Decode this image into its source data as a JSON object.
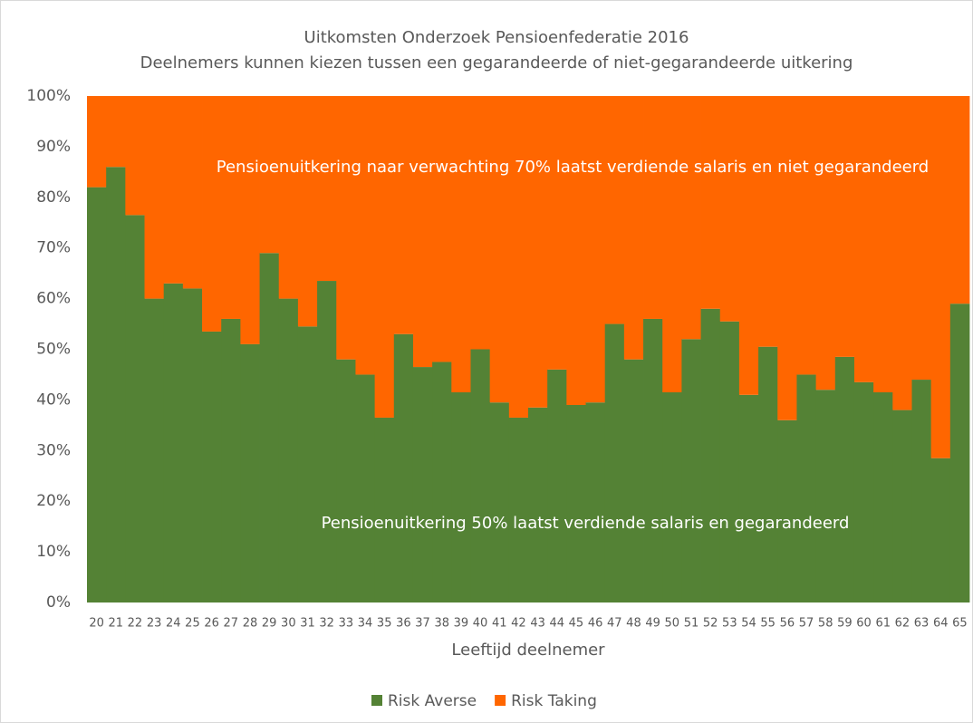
{
  "chart_data": {
    "type": "stacked_bar",
    "title": "Uitkomsten Onderzoek Pensioenfederatie 2016",
    "subtitle": "Deelnemers kunnen kiezen tussen een gegarandeerde of niet-gegarandeerde uitkering",
    "x_label": "Leeftijd deelnemer",
    "categories": [
      "20",
      "21",
      "22",
      "23",
      "24",
      "25",
      "26",
      "27",
      "28",
      "29",
      "30",
      "31",
      "32",
      "33",
      "34",
      "35",
      "36",
      "37",
      "38",
      "39",
      "40",
      "41",
      "42",
      "43",
      "44",
      "45",
      "46",
      "47",
      "48",
      "49",
      "50",
      "51",
      "52",
      "53",
      "54",
      "55",
      "56",
      "57",
      "58",
      "59",
      "60",
      "61",
      "62",
      "63",
      "64",
      "65"
    ],
    "series": [
      {
        "name": "Risk Averse",
        "color": "#548235",
        "values": [
          82,
          86,
          76.5,
          60,
          63,
          62,
          53.5,
          56,
          51,
          69,
          60,
          54.5,
          63.5,
          48,
          45,
          36.5,
          53,
          46.5,
          47.5,
          41.5,
          50,
          39.5,
          36.5,
          38.5,
          46,
          39,
          39.5,
          55,
          48,
          56,
          41.5,
          52,
          58,
          55.5,
          41,
          50.5,
          36,
          45,
          42,
          48.5,
          43.5,
          41.5,
          38,
          44,
          28.5,
          59
        ]
      },
      {
        "name": "Risk Taking",
        "color": "#ff6600",
        "values": [
          18,
          14,
          23.5,
          40,
          37,
          38,
          46.5,
          44,
          49,
          31,
          40,
          45.5,
          36.5,
          52,
          55,
          63.5,
          47,
          53.5,
          52.5,
          58.5,
          50,
          60.5,
          63.5,
          61.5,
          54,
          61,
          60.5,
          45,
          52,
          44,
          58.5,
          48,
          42,
          44.5,
          59,
          49.5,
          64,
          55,
          58,
          51.5,
          56.5,
          58.5,
          62,
          56,
          71.5,
          41
        ]
      }
    ],
    "annotations": [
      "Pensioenuitkering naar verwachting 70% laatst verdiende salaris en niet gegarandeerd",
      "Pensioenuitkering 50% laatst verdiende salaris en gegarandeerd"
    ],
    "ylim": [
      0,
      100
    ],
    "yticks": [
      {
        "value": 0,
        "label": "0%"
      },
      {
        "value": 10,
        "label": "10%"
      },
      {
        "value": 20,
        "label": "20%"
      },
      {
        "value": 30,
        "label": "30%"
      },
      {
        "value": 40,
        "label": "40%"
      },
      {
        "value": 50,
        "label": "50%"
      },
      {
        "value": 60,
        "label": "60%"
      },
      {
        "value": 70,
        "label": "70%"
      },
      {
        "value": 80,
        "label": "80%"
      },
      {
        "value": 90,
        "label": "90%"
      },
      {
        "value": 100,
        "label": "100%"
      }
    ],
    "legend": "bottom"
  }
}
